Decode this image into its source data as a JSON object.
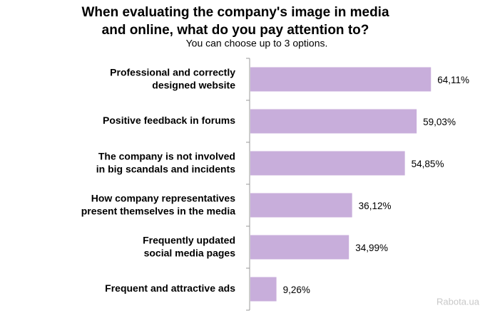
{
  "chart_data": {
    "type": "bar",
    "orientation": "horizontal",
    "title": "When evaluating the company's image in media\nand online, what do you pay attention to?",
    "subtitle": "You can choose up to 3 options.",
    "categories": [
      "Professional and correctly\ndesigned website",
      "Positive feedback in forums",
      "The company is not involved\nin big scandals and incidents",
      "How company representatives\npresent themselves in the media",
      "Frequently updated\nsocial media pages",
      "Frequent and attractive ads"
    ],
    "values": [
      64.11,
      59.03,
      54.85,
      36.12,
      34.99,
      9.26
    ],
    "value_labels": [
      "64,11%",
      "59,03%",
      "54,85%",
      "36,12%",
      "34,99%",
      "9,26%"
    ],
    "color": "#c8aedb",
    "source": "Rabota.ua"
  }
}
